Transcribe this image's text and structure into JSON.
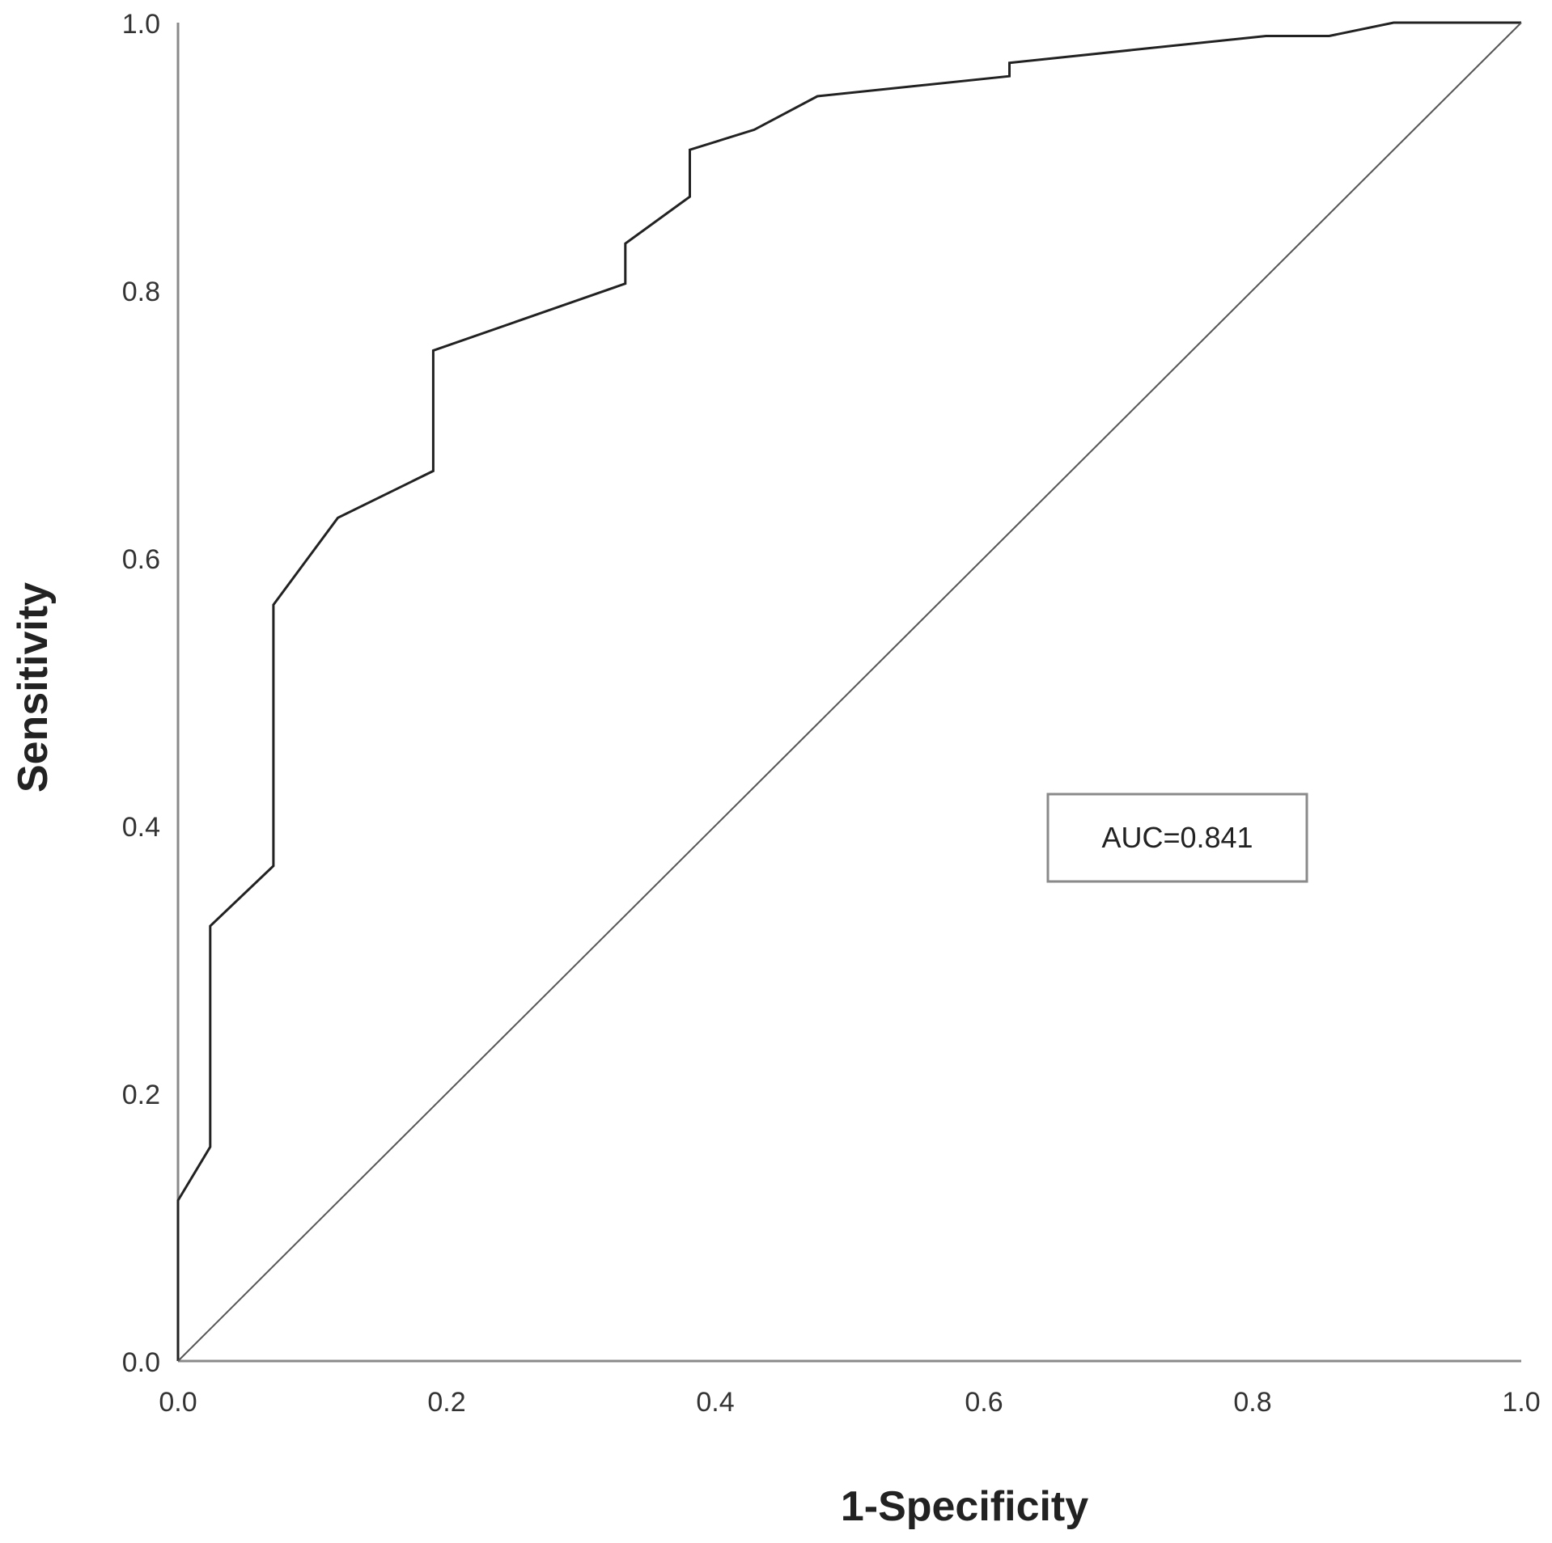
{
  "chart_data": {
    "type": "line",
    "title": "",
    "xlabel": "1-Specificity",
    "ylabel": "Sensitivity",
    "xlim": [
      0,
      1
    ],
    "ylim": [
      0,
      1
    ],
    "x_ticks": [
      "0.0",
      "0.2",
      "0.4",
      "0.6",
      "0.8",
      "1.0"
    ],
    "y_ticks": [
      "0.0",
      "0.2",
      "0.4",
      "0.6",
      "0.8",
      "1.0"
    ],
    "grid": false,
    "annotation": "AUC=0.841",
    "series": [
      {
        "points": [
          [
            0.0,
            0.0
          ],
          [
            0.0,
            0.12
          ],
          [
            0.024,
            0.16
          ],
          [
            0.024,
            0.325
          ],
          [
            0.071,
            0.37
          ],
          [
            0.071,
            0.565
          ],
          [
            0.119,
            0.63
          ],
          [
            0.19,
            0.665
          ],
          [
            0.19,
            0.755
          ],
          [
            0.333,
            0.805
          ],
          [
            0.333,
            0.835
          ],
          [
            0.381,
            0.87
          ],
          [
            0.381,
            0.905
          ],
          [
            0.429,
            0.92
          ],
          [
            0.476,
            0.945
          ],
          [
            0.619,
            0.96
          ],
          [
            0.619,
            0.97
          ],
          [
            0.81,
            0.99
          ],
          [
            0.857,
            0.99
          ],
          [
            0.905,
            1.0
          ],
          [
            1.0,
            1.0
          ]
        ],
        "color": "#222222"
      },
      {
        "points": [
          [
            0,
            0
          ],
          [
            1,
            1
          ]
        ],
        "color": "#555555"
      }
    ]
  }
}
